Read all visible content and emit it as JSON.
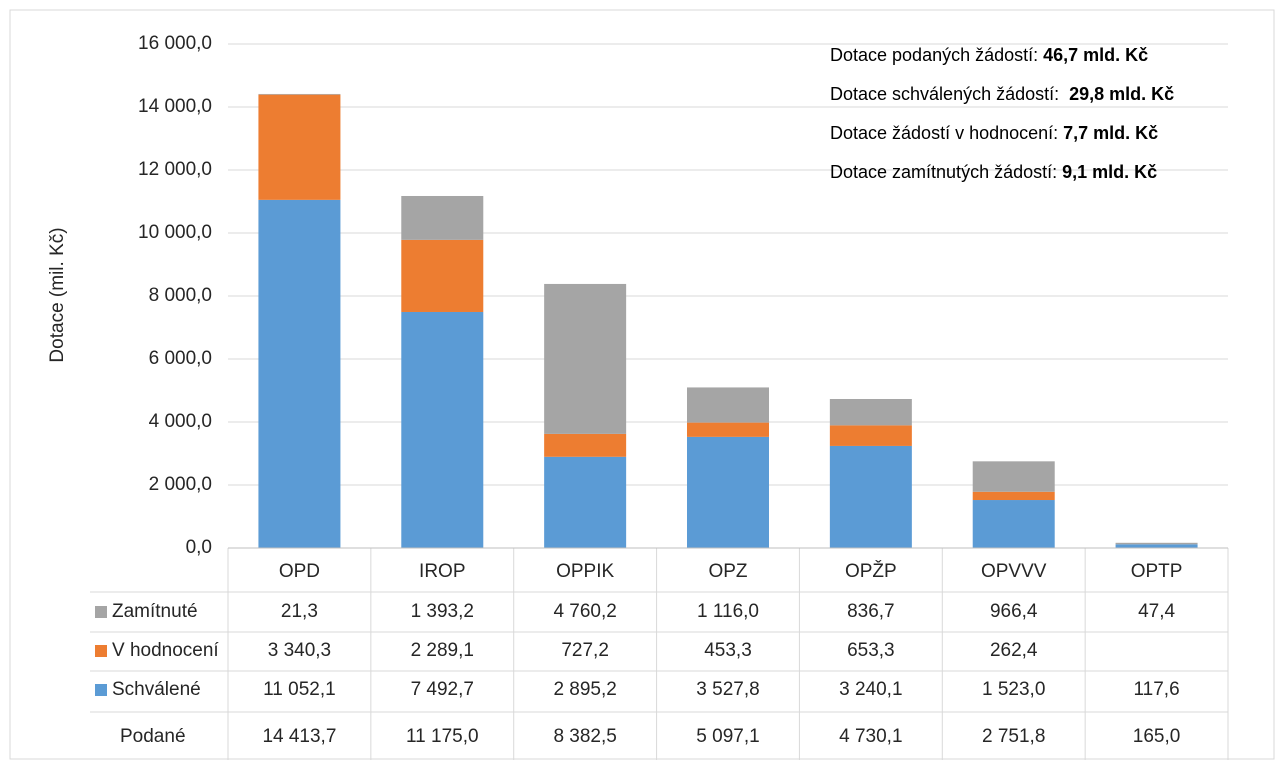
{
  "chart_data": {
    "type": "stacked_bar",
    "y_axis_label": "Dotace (mil. Kč)",
    "categories": [
      "OPD",
      "IROP",
      "OPPIK",
      "OPZ",
      "OPŽP",
      "OPVVV",
      "OPTP"
    ],
    "ylim": [
      0,
      16000
    ],
    "yticks": [
      {
        "value": 0,
        "label": "0,0"
      },
      {
        "value": 2000,
        "label": "2 000,0"
      },
      {
        "value": 4000,
        "label": "4 000,0"
      },
      {
        "value": 6000,
        "label": "6 000,0"
      },
      {
        "value": 8000,
        "label": "8 000,0"
      },
      {
        "value": 10000,
        "label": "10 000,0"
      },
      {
        "value": 12000,
        "label": "12 000,0"
      },
      {
        "value": 14000,
        "label": "14 000,0"
      },
      {
        "value": 16000,
        "label": "16 000,0"
      }
    ],
    "grid": true,
    "series": [
      {
        "name": "Schválené",
        "color": "#5b9bd5",
        "values": [
          11052.1,
          7492.7,
          2895.2,
          3527.8,
          3240.1,
          1523.0,
          117.6
        ],
        "value_labels": [
          "11 052,1",
          "7 492,7",
          "2 895,2",
          "3 527,8",
          "3 240,1",
          "1 523,0",
          "117,6"
        ]
      },
      {
        "name": "V hodnocení",
        "color": "#ed7d31",
        "values": [
          3340.3,
          2289.1,
          727.2,
          453.3,
          653.3,
          262.4,
          null
        ],
        "value_labels": [
          "3 340,3",
          "2 289,1",
          "727,2",
          "453,3",
          "653,3",
          "262,4",
          null
        ]
      },
      {
        "name": "Zamítnuté",
        "color": "#a5a5a5",
        "values": [
          21.3,
          1393.2,
          4760.2,
          1116.0,
          836.7,
          966.4,
          47.4
        ],
        "value_labels": [
          "21,3",
          "1 393,2",
          "4 760,2",
          "1 116,0",
          "836,7",
          "966,4",
          "47,4"
        ]
      }
    ],
    "totals": {
      "name": "Podané",
      "values": [
        14413.7,
        11175.0,
        8382.5,
        5097.1,
        4730.1,
        2751.8,
        165.0
      ],
      "value_labels": [
        "14 413,7",
        "11 175,0",
        "8 382,5",
        "5 097,1",
        "4 730,1",
        "2 751,8",
        "165,0"
      ]
    },
    "annotations": [
      {
        "text": "Dotace podaných žádostí:",
        "value": "46,7 mld. Kč"
      },
      {
        "text": "Dotace schválených žádostí: ",
        "value": "29,8 mld. Kč"
      },
      {
        "text": "Dotace žádostí v hodnocení:",
        "value": "7,7 mld. Kč"
      },
      {
        "text": "Dotace zamítnutých žádostí:",
        "value": "9,1 mld. Kč"
      }
    ]
  }
}
